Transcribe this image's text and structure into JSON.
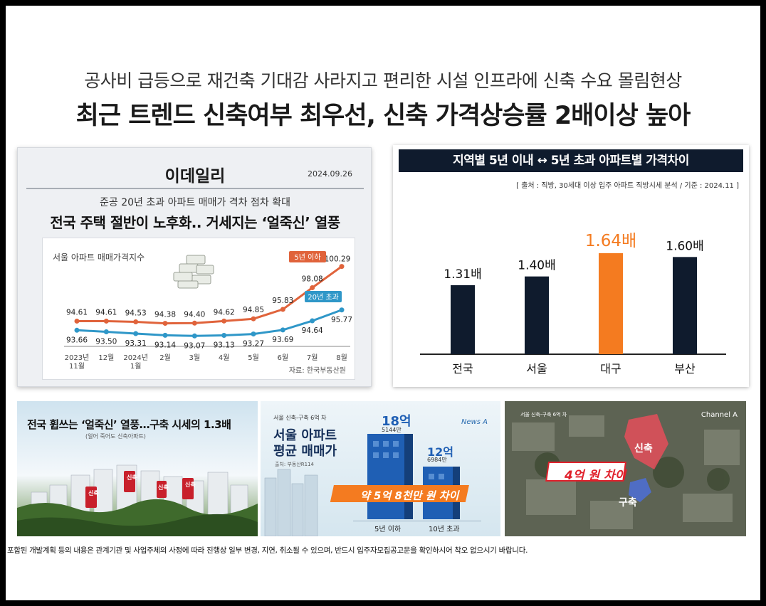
{
  "headline": {
    "sub": "공사비 급등으로 재건축 기대감 사라지고 편리한 시설 인프라에 신축 수요 몰림현상",
    "main": "최근 트렌드 신축여부 최우선, 신축 가격상승률 2배이상 높아"
  },
  "edaily": {
    "logo": "이데일리",
    "date": "2024.09.26",
    "subtitle": "준공 20년 초과 아파트 매매가 격차 점차 확대",
    "title": "전국 주택 절반이 노후화.. 거세지는 ‘얼죽신’ 열풍",
    "chart_title": "서울 아파트 매매가격지수",
    "source": "자료: 한국부동산원"
  },
  "regional": {
    "header": "지역별 5년 이내 ↔ 5년 초과 아파트별 가격차이",
    "note": "[ 출처 : 직방, 30세대 이상 입주 아파트 직방시세 분석  / 기준 : 2024.11 ]"
  },
  "thumbs": {
    "t1_title": "전국 휩쓰는 ‘얼죽신’ 열풍…구축 시세의 1.3배",
    "t1_caption": "(얼어 죽어도 신축아파트)",
    "t1_signs": [
      "신축",
      "신축",
      "신축",
      "신축"
    ],
    "t2_tag": "서울 신축-구축 6억 차",
    "t2_logo": "News A",
    "t2_title_1": "서울 아파트",
    "t2_title_2": "평균 매매가",
    "t2_source": "출처: 부동산R114",
    "t2_big": "18억",
    "t2_big_sub": "5144만",
    "t2_small": "12억",
    "t2_small_sub": "6984만",
    "t2_banner": "약 5억 8천만 원 차이",
    "t2_label_new": "5년 이하",
    "t2_label_old": "10년 초과",
    "t3_tag": "서울 신축-구축 6억 차",
    "t3_logo": "Channel A",
    "t3_new": "신축",
    "t3_old": "구축",
    "t3_banner": "4억 원 차이"
  },
  "disclaimer": "포함된 개발계획 등의 내용은 관계기관 및 사업주체의 사정에 따라 진행상 일부 변경, 지연, 취소될 수 있으며, 반드시 입주자모집공고문을 확인하시어 착오 없으시기 바랍니다.",
  "chart_data": [
    {
      "type": "line",
      "title": "서울 아파트 매매가격지수",
      "categories": [
        "2023년\n11월",
        "12월",
        "2024년\n1월",
        "2월",
        "3월",
        "4월",
        "5월",
        "6월",
        "7월",
        "8월"
      ],
      "series": [
        {
          "name": "5년 이하",
          "color": "#e0633b",
          "values": [
            94.61,
            94.61,
            94.53,
            94.38,
            94.4,
            94.62,
            94.85,
            95.83,
            98.08,
            100.29
          ]
        },
        {
          "name": "20년 초과",
          "color": "#2f97c8",
          "values": [
            93.66,
            93.5,
            93.31,
            93.14,
            93.07,
            93.13,
            93.27,
            93.69,
            94.64,
            95.77
          ]
        }
      ],
      "ylim": [
        92.5,
        101
      ],
      "grid": false
    },
    {
      "type": "bar",
      "categories": [
        "전국",
        "서울",
        "대구",
        "부산"
      ],
      "values": [
        1.31,
        1.4,
        1.64,
        1.6
      ],
      "labels": [
        "1.31배",
        "1.40배",
        "1.64배",
        "1.60배"
      ],
      "colors": [
        "#0f1b2d",
        "#0f1b2d",
        "#f47b20",
        "#0f1b2d"
      ],
      "highlight": "대구",
      "ylim": [
        0,
        1.8
      ]
    }
  ]
}
